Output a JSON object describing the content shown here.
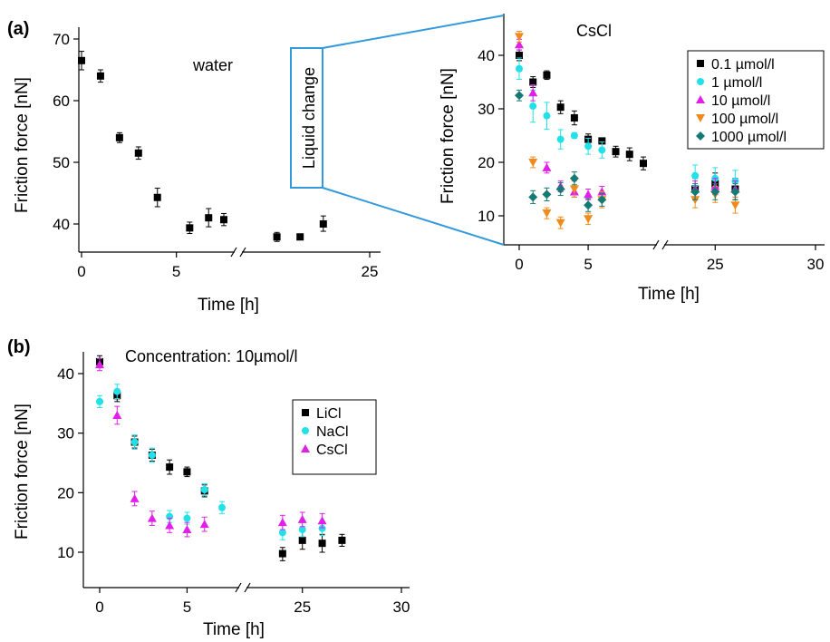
{
  "panel_labels": {
    "a": "(a)",
    "b": "(b)"
  },
  "liquid_change_label": "Liquid change",
  "colors": {
    "accent_blue": "#3399dd",
    "black": "#000000",
    "cyan": "#22e0e8",
    "magenta": "#e020e8",
    "orange": "#f08a1a",
    "teal": "#157a74"
  },
  "chart_data": [
    {
      "id": "a-water",
      "type": "scatter",
      "title": "water",
      "xlabel": "Time [h]",
      "ylabel": "Friction force [nN]",
      "xticks": [
        "0",
        "5",
        "25"
      ],
      "yticks": [
        "40",
        "50",
        "60",
        "70"
      ],
      "ylim": [
        35,
        70
      ],
      "x_axis_break": "between 7.5 h and 20 h",
      "series": [
        {
          "marker": "square",
          "color": "#000000",
          "points": [
            {
              "x": 0,
              "y": 66.5,
              "err": 1.5
            },
            {
              "x": 1,
              "y": 64,
              "err": 1
            },
            {
              "x": 2,
              "y": 54,
              "err": 0.8
            },
            {
              "x": 3,
              "y": 51.5,
              "err": 1
            },
            {
              "x": 4,
              "y": 44.3,
              "err": 1.5
            },
            {
              "x": 5.7,
              "y": 39.3,
              "err": 1
            },
            {
              "x": 6.7,
              "y": 41,
              "err": 1.5
            },
            {
              "x": 7.5,
              "y": 40.7,
              "err": 1
            },
            {
              "x": 21,
              "y": 37.7,
              "err": 0.8
            },
            {
              "x": 22,
              "y": 37.7,
              "err": 0.3
            },
            {
              "x": 23,
              "y": 40,
              "err": 1.3
            }
          ]
        }
      ]
    },
    {
      "id": "a-cscl",
      "type": "scatter",
      "title": "CsCl",
      "xlabel": "Time [h]",
      "ylabel": "Friction force [nN]",
      "xticks": [
        "0",
        "5",
        "25",
        "30"
      ],
      "yticks": [
        "10",
        "20",
        "30",
        "40"
      ],
      "ylim": [
        5,
        45
      ],
      "x_axis_break": "between 9 h and 23 h",
      "legend_position": "top-right",
      "series": [
        {
          "name": "0.1 µmol/l",
          "marker": "square",
          "color": "#000000",
          "points": [
            {
              "x": 0,
              "y": 40,
              "err": 1
            },
            {
              "x": 1,
              "y": 35,
              "err": 1
            },
            {
              "x": 2,
              "y": 36.3,
              "err": 0.8
            },
            {
              "x": 3,
              "y": 30.3,
              "err": 1.2
            },
            {
              "x": 4,
              "y": 28.3,
              "err": 1.3
            },
            {
              "x": 5,
              "y": 24.3,
              "err": 1
            },
            {
              "x": 6,
              "y": 24,
              "err": 0.5
            },
            {
              "x": 7,
              "y": 22,
              "err": 1
            },
            {
              "x": 8,
              "y": 21.5,
              "err": 1.2
            },
            {
              "x": 9,
              "y": 19.8,
              "err": 1.2
            },
            {
              "x": 24,
              "y": 15,
              "err": 2
            },
            {
              "x": 25,
              "y": 16,
              "err": 2
            },
            {
              "x": 26,
              "y": 15,
              "err": 2
            }
          ]
        },
        {
          "name": "1 µmol/l",
          "marker": "circle",
          "color": "#22e0e8",
          "points": [
            {
              "x": 0,
              "y": 37.5,
              "err": 2
            },
            {
              "x": 1,
              "y": 30.5,
              "err": 3
            },
            {
              "x": 2,
              "y": 28.7,
              "err": 2.5
            },
            {
              "x": 3,
              "y": 24.3,
              "err": 1.8
            },
            {
              "x": 4,
              "y": 25,
              "err": 0.5
            },
            {
              "x": 5,
              "y": 23,
              "err": 1.5
            },
            {
              "x": 6,
              "y": 22.3,
              "err": 1.5
            },
            {
              "x": 24,
              "y": 17.5,
              "err": 2
            },
            {
              "x": 25,
              "y": 17,
              "err": 2
            },
            {
              "x": 26,
              "y": 16.5,
              "err": 2
            }
          ]
        },
        {
          "name": "10 µmol/l",
          "marker": "triangle-up",
          "color": "#e020e8",
          "points": [
            {
              "x": 0,
              "y": 42,
              "err": 1
            },
            {
              "x": 1,
              "y": 33,
              "err": 1.5
            },
            {
              "x": 2,
              "y": 19,
              "err": 1
            },
            {
              "x": 3,
              "y": 15.5,
              "err": 1
            },
            {
              "x": 4,
              "y": 14.5,
              "err": 1
            },
            {
              "x": 5,
              "y": 14,
              "err": 1
            },
            {
              "x": 6,
              "y": 14.5,
              "err": 1
            },
            {
              "x": 24,
              "y": 15,
              "err": 1.5
            },
            {
              "x": 25,
              "y": 15.5,
              "err": 1.5
            },
            {
              "x": 26,
              "y": 15,
              "err": 1.5
            }
          ]
        },
        {
          "name": "100 µmol/l",
          "marker": "triangle-down",
          "color": "#f08a1a",
          "points": [
            {
              "x": 0,
              "y": 43.5,
              "err": 1
            },
            {
              "x": 1,
              "y": 20,
              "err": 1
            },
            {
              "x": 2,
              "y": 10.5,
              "err": 1
            },
            {
              "x": 3,
              "y": 8.8,
              "err": 1
            },
            {
              "x": 4,
              "y": 15,
              "err": 1.5
            },
            {
              "x": 5,
              "y": 9.5,
              "err": 1
            },
            {
              "x": 6,
              "y": 13,
              "err": 1.5
            },
            {
              "x": 24,
              "y": 13,
              "err": 1.5
            },
            {
              "x": 25,
              "y": 14,
              "err": 1.5
            },
            {
              "x": 26,
              "y": 12,
              "err": 1.5
            }
          ]
        },
        {
          "name": "1000 µmol/l",
          "marker": "diamond",
          "color": "#157a74",
          "points": [
            {
              "x": 0,
              "y": 32.5,
              "err": 1
            },
            {
              "x": 1,
              "y": 13.5,
              "err": 1.2
            },
            {
              "x": 2,
              "y": 14,
              "err": 1.2
            },
            {
              "x": 3,
              "y": 15,
              "err": 1.2
            },
            {
              "x": 4,
              "y": 17,
              "err": 1.2
            },
            {
              "x": 5,
              "y": 12,
              "err": 1.2
            },
            {
              "x": 6,
              "y": 13,
              "err": 1.2
            },
            {
              "x": 24,
              "y": 14.5,
              "err": 1.5
            },
            {
              "x": 25,
              "y": 14.5,
              "err": 1.5
            },
            {
              "x": 26,
              "y": 14.5,
              "err": 1.5
            }
          ]
        }
      ]
    },
    {
      "id": "b",
      "type": "scatter",
      "title": "Concentration: 10µmol/l",
      "xlabel": "Time [h]",
      "ylabel": "Friction force [nN]",
      "xticks": [
        "0",
        "5",
        "25",
        "30"
      ],
      "yticks": [
        "10",
        "20",
        "30",
        "40"
      ],
      "ylim": [
        5,
        45
      ],
      "x_axis_break": "between 7 h and 23 h",
      "legend_position": "center-right",
      "series": [
        {
          "name": "LiCl",
          "marker": "square",
          "color": "#000000",
          "points": [
            {
              "x": 0,
              "y": 42,
              "err": 1
            },
            {
              "x": 1,
              "y": 36.3,
              "err": 1
            },
            {
              "x": 2,
              "y": 28.5,
              "err": 1
            },
            {
              "x": 3,
              "y": 26.3,
              "err": 1
            },
            {
              "x": 4,
              "y": 24.3,
              "err": 1.2
            },
            {
              "x": 5,
              "y": 23.5,
              "err": 0.8
            },
            {
              "x": 6,
              "y": 20.3,
              "err": 1
            },
            {
              "x": 24,
              "y": 9.8,
              "err": 1
            },
            {
              "x": 25,
              "y": 12,
              "err": 1.5
            },
            {
              "x": 26,
              "y": 11.5,
              "err": 1.5
            },
            {
              "x": 27,
              "y": 12,
              "err": 1
            }
          ]
        },
        {
          "name": "NaCl",
          "marker": "circle",
          "color": "#22e0e8",
          "points": [
            {
              "x": 0,
              "y": 35.3,
              "err": 1
            },
            {
              "x": 1,
              "y": 37,
              "err": 1.2
            },
            {
              "x": 2,
              "y": 28.5,
              "err": 1.2
            },
            {
              "x": 3,
              "y": 26.3,
              "err": 1.2
            },
            {
              "x": 4,
              "y": 16,
              "err": 1
            },
            {
              "x": 5,
              "y": 15.7,
              "err": 1
            },
            {
              "x": 6,
              "y": 20.5,
              "err": 1
            },
            {
              "x": 7,
              "y": 17.5,
              "err": 1
            },
            {
              "x": 24,
              "y": 13.3,
              "err": 1.2
            },
            {
              "x": 25,
              "y": 13.8,
              "err": 1.2
            },
            {
              "x": 26,
              "y": 14,
              "err": 1.2
            }
          ]
        },
        {
          "name": "CsCl",
          "marker": "triangle-up",
          "color": "#e020e8",
          "points": [
            {
              "x": 0,
              "y": 41.5,
              "err": 1
            },
            {
              "x": 1,
              "y": 33,
              "err": 1.5
            },
            {
              "x": 2,
              "y": 19,
              "err": 1.2
            },
            {
              "x": 3,
              "y": 15.7,
              "err": 1.2
            },
            {
              "x": 4,
              "y": 14.5,
              "err": 1.2
            },
            {
              "x": 5,
              "y": 13.8,
              "err": 1.2
            },
            {
              "x": 6,
              "y": 14.7,
              "err": 1.2
            },
            {
              "x": 24,
              "y": 15,
              "err": 1.2
            },
            {
              "x": 25,
              "y": 15.5,
              "err": 1.2
            },
            {
              "x": 26,
              "y": 15.3,
              "err": 1.2
            }
          ]
        }
      ]
    }
  ]
}
